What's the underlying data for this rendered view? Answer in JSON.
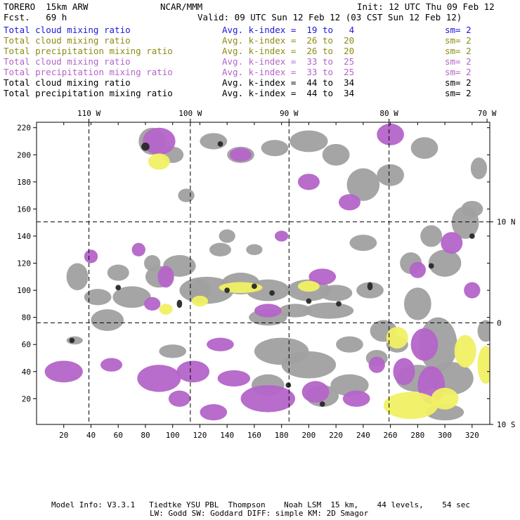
{
  "header": {
    "model": "TORERO  15km ARW",
    "center": "NCAR/MMM",
    "init": "Init: 12 UTC Thu 09 Feb 12",
    "fcst": "Fcst.   69 h",
    "valid": "Valid: 09 UTC Sun 12 Feb 12 (03 CST Sun 12 Feb 12)"
  },
  "legend": [
    {
      "field": "Total cloud mixing ratio",
      "kidx": "Avg. k-index =  19 to   4",
      "sm": "sm= 2",
      "color": "#1a1adc"
    },
    {
      "field": "Total cloud mixing ratio",
      "kidx": "Avg. k-index =  26 to  20",
      "sm": "sm= 2",
      "color": "#8c8c14"
    },
    {
      "field": "Total precipitation mixing ratio",
      "kidx": "Avg. k-index =  26 to  20",
      "sm": "sm= 2",
      "color": "#8c8c14"
    },
    {
      "field": "Total cloud mixing ratio",
      "kidx": "Avg. k-index =  33 to  25",
      "sm": "sm= 2",
      "color": "#b464c8"
    },
    {
      "field": "Total precipitation mixing ratio",
      "kidx": "Avg. k-index =  33 to  25",
      "sm": "sm= 2",
      "color": "#b464c8"
    },
    {
      "field": "Total cloud mixing ratio",
      "kidx": "Avg. k-index =  44 to  34",
      "sm": "sm= 2",
      "color": "#000000"
    },
    {
      "field": "Total precipitation mixing ratio",
      "kidx": "Avg. k-index =  44 to  34",
      "sm": "sm= 2",
      "color": "#000000"
    }
  ],
  "chart_data": {
    "type": "heatmap",
    "x_ticks": [
      20,
      40,
      60,
      80,
      100,
      120,
      140,
      160,
      180,
      200,
      220,
      240,
      260,
      280,
      300,
      320
    ],
    "y_ticks": [
      20,
      40,
      60,
      80,
      100,
      120,
      140,
      160,
      180,
      200,
      220
    ],
    "xlim": [
      0,
      333
    ],
    "ylim": [
      1,
      224
    ],
    "lon_labels": [
      {
        "label": "110 W",
        "x": 38.5
      },
      {
        "label": "100 W",
        "x": 113
      },
      {
        "label": "90 W",
        "x": 185.5
      },
      {
        "label": "80 W",
        "x": 259
      },
      {
        "label": "70 W",
        "x": 331
      }
    ],
    "lat_labels": [
      {
        "label": "10 N",
        "y": 150.5
      },
      {
        "label": "0",
        "y": 76
      },
      {
        "label": "10 S",
        "y": 1
      }
    ],
    "grid_lons": [
      38.5,
      113,
      185.5,
      259
    ],
    "grid_lats": [
      150.5,
      76
    ],
    "colors": {
      "gray": "#a0a0a0",
      "purple": "#b464c8",
      "yellow": "#f0f064",
      "dark": "#282828"
    },
    "blobs": {
      "gray": [
        [
          28,
          63,
          6,
          3
        ],
        [
          52,
          78,
          12,
          8
        ],
        [
          30,
          110,
          8,
          10
        ],
        [
          45,
          95,
          10,
          6
        ],
        [
          70,
          95,
          14,
          8
        ],
        [
          60,
          113,
          8,
          6
        ],
        [
          90,
          110,
          10,
          8
        ],
        [
          105,
          118,
          12,
          8
        ],
        [
          125,
          100,
          20,
          10
        ],
        [
          150,
          105,
          14,
          8
        ],
        [
          170,
          100,
          16,
          8
        ],
        [
          200,
          100,
          16,
          8
        ],
        [
          220,
          98,
          12,
          6
        ],
        [
          215,
          85,
          18,
          6
        ],
        [
          190,
          85,
          12,
          5
        ],
        [
          170,
          80,
          14,
          6
        ],
        [
          240,
          135,
          10,
          6
        ],
        [
          245,
          100,
          10,
          6
        ],
        [
          255,
          70,
          10,
          8
        ],
        [
          265,
          60,
          8,
          6
        ],
        [
          280,
          90,
          10,
          12
        ],
        [
          300,
          120,
          12,
          10
        ],
        [
          315,
          150,
          10,
          12
        ],
        [
          295,
          60,
          14,
          20
        ],
        [
          305,
          35,
          16,
          12
        ],
        [
          280,
          35,
          16,
          10
        ],
        [
          200,
          45,
          20,
          10
        ],
        [
          180,
          55,
          20,
          10
        ],
        [
          170,
          30,
          12,
          8
        ],
        [
          210,
          22,
          12,
          8
        ],
        [
          230,
          30,
          14,
          8
        ],
        [
          300,
          10,
          14,
          6
        ],
        [
          150,
          200,
          10,
          6
        ],
        [
          175,
          205,
          10,
          6
        ],
        [
          200,
          210,
          14,
          8
        ],
        [
          220,
          200,
          10,
          8
        ],
        [
          240,
          178,
          12,
          12
        ],
        [
          260,
          185,
          10,
          8
        ],
        [
          285,
          205,
          10,
          8
        ],
        [
          320,
          160,
          8,
          6
        ],
        [
          325,
          190,
          6,
          8
        ],
        [
          85,
          210,
          10,
          10
        ],
        [
          100,
          200,
          8,
          6
        ],
        [
          130,
          210,
          10,
          6
        ],
        [
          110,
          170,
          6,
          5
        ],
        [
          120,
          100,
          8,
          8
        ],
        [
          160,
          130,
          6,
          4
        ],
        [
          140,
          140,
          6,
          5
        ],
        [
          230,
          60,
          10,
          6
        ],
        [
          250,
          50,
          8,
          6
        ],
        [
          100,
          55,
          10,
          5
        ],
        [
          85,
          120,
          6,
          6
        ],
        [
          330,
          70,
          6,
          8
        ],
        [
          290,
          140,
          8,
          8
        ],
        [
          275,
          120,
          8,
          8
        ],
        [
          135,
          130,
          8,
          5
        ]
      ],
      "purple": [
        [
          20,
          40,
          14,
          8
        ],
        [
          55,
          45,
          8,
          5
        ],
        [
          90,
          35,
          16,
          10
        ],
        [
          115,
          40,
          12,
          8
        ],
        [
          145,
          35,
          12,
          6
        ],
        [
          170,
          20,
          20,
          10
        ],
        [
          205,
          25,
          10,
          8
        ],
        [
          235,
          20,
          10,
          6
        ],
        [
          130,
          10,
          10,
          6
        ],
        [
          105,
          20,
          8,
          6
        ],
        [
          290,
          30,
          10,
          14
        ],
        [
          285,
          60,
          10,
          12
        ],
        [
          270,
          40,
          8,
          10
        ],
        [
          90,
          210,
          12,
          10
        ],
        [
          95,
          110,
          6,
          8
        ],
        [
          85,
          90,
          6,
          5
        ],
        [
          210,
          110,
          10,
          6
        ],
        [
          170,
          85,
          10,
          5
        ],
        [
          230,
          165,
          8,
          6
        ],
        [
          200,
          180,
          8,
          6
        ],
        [
          260,
          215,
          10,
          8
        ],
        [
          305,
          135,
          8,
          8
        ],
        [
          280,
          115,
          6,
          6
        ],
        [
          40,
          125,
          5,
          5
        ],
        [
          75,
          130,
          5,
          5
        ],
        [
          150,
          200,
          8,
          5
        ],
        [
          135,
          60,
          10,
          5
        ],
        [
          250,
          45,
          6,
          6
        ],
        [
          320,
          100,
          6,
          6
        ],
        [
          180,
          140,
          5,
          4
        ]
      ],
      "yellow": [
        [
          275,
          15,
          20,
          10
        ],
        [
          300,
          20,
          10,
          8
        ],
        [
          315,
          55,
          8,
          12
        ],
        [
          330,
          45,
          6,
          14
        ],
        [
          265,
          65,
          8,
          8
        ],
        [
          90,
          195,
          8,
          6
        ],
        [
          150,
          102,
          16,
          4
        ],
        [
          200,
          103,
          8,
          4
        ],
        [
          120,
          92,
          6,
          4
        ],
        [
          95,
          86,
          5,
          4
        ]
      ],
      "dark": [
        [
          80,
          206,
          3,
          3
        ],
        [
          160,
          103,
          2,
          2
        ],
        [
          173,
          98,
          2,
          2
        ],
        [
          200,
          92,
          2,
          2
        ],
        [
          222,
          90,
          2,
          2
        ],
        [
          245,
          103,
          2,
          3
        ],
        [
          290,
          118,
          2,
          2
        ],
        [
          140,
          100,
          2,
          2
        ],
        [
          105,
          90,
          2,
          3
        ],
        [
          60,
          102,
          2,
          2
        ],
        [
          26,
          63,
          2,
          2
        ],
        [
          185,
          30,
          2,
          2
        ],
        [
          210,
          16,
          2,
          2
        ],
        [
          320,
          140,
          2,
          2
        ],
        [
          135,
          208,
          2,
          2
        ]
      ]
    }
  },
  "footer": {
    "line1": "Model Info: V3.3.1   Tiedtke YSU PBL  Thompson    Noah LSM  15 km,    44 levels,    54 sec",
    "line2": "LW: Godd SW: Goddard DIFF: simple KM: 2D Smagor"
  }
}
